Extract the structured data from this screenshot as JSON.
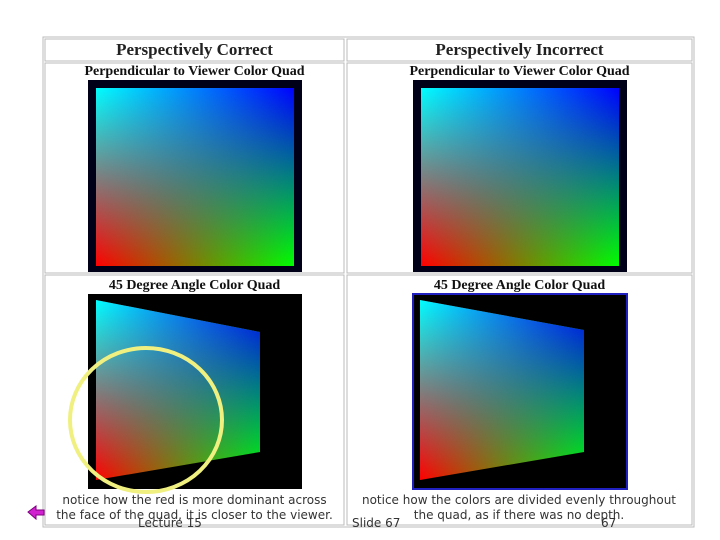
{
  "table": {
    "headers": [
      "Perspectively Correct",
      "Perspectively Incorrect"
    ],
    "rows": [
      [
        "Perpendicular to Viewer Color Quad",
        "Perpendicular to Viewer Color Quad"
      ],
      [
        "45 Degree Angle Color Quad",
        "45 Degree Angle Color Quad"
      ]
    ],
    "captions": [
      "notice how the red is more dominant across the face of the quad, it is closer to the viewer.",
      "notice how the colors are divided evenly throughout the quad, as if there was no depth."
    ]
  },
  "footer": {
    "lecture": "Lecture 15",
    "slide": "Slide 67",
    "page": "67"
  }
}
